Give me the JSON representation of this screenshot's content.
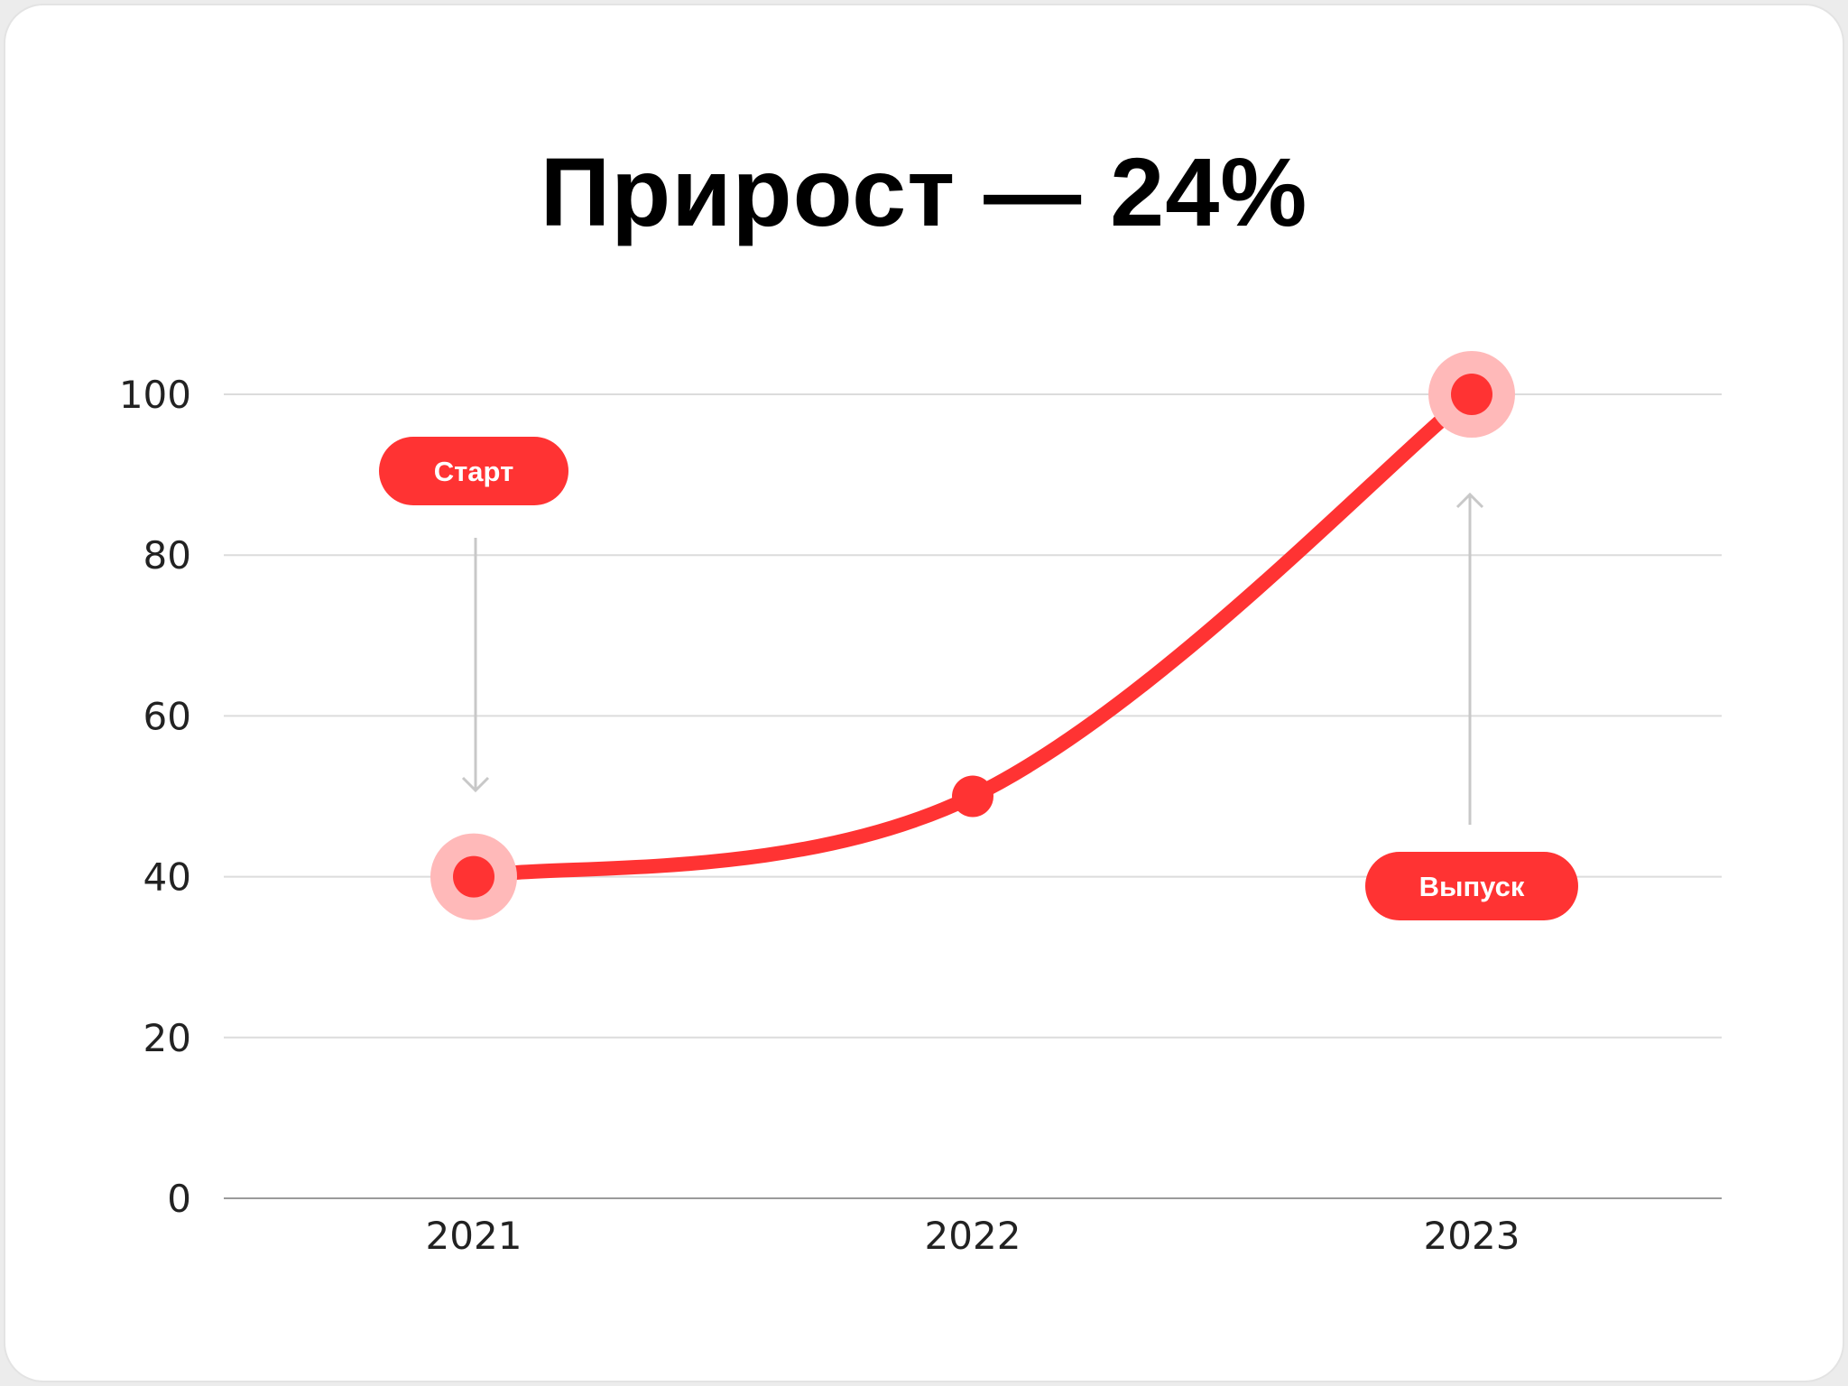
{
  "chart_data": {
    "type": "line",
    "title": "Прирост — 24%",
    "categories": [
      "2021",
      "2022",
      "2023"
    ],
    "values": [
      40,
      50,
      100
    ],
    "ylim": [
      0,
      100
    ],
    "yticks": [
      0,
      20,
      40,
      60,
      80,
      100
    ],
    "grid": true,
    "series_color": "#ff3333",
    "annotations": [
      {
        "label": "Старт",
        "category": "2021"
      },
      {
        "label": "Выпуск",
        "category": "2023"
      }
    ]
  }
}
